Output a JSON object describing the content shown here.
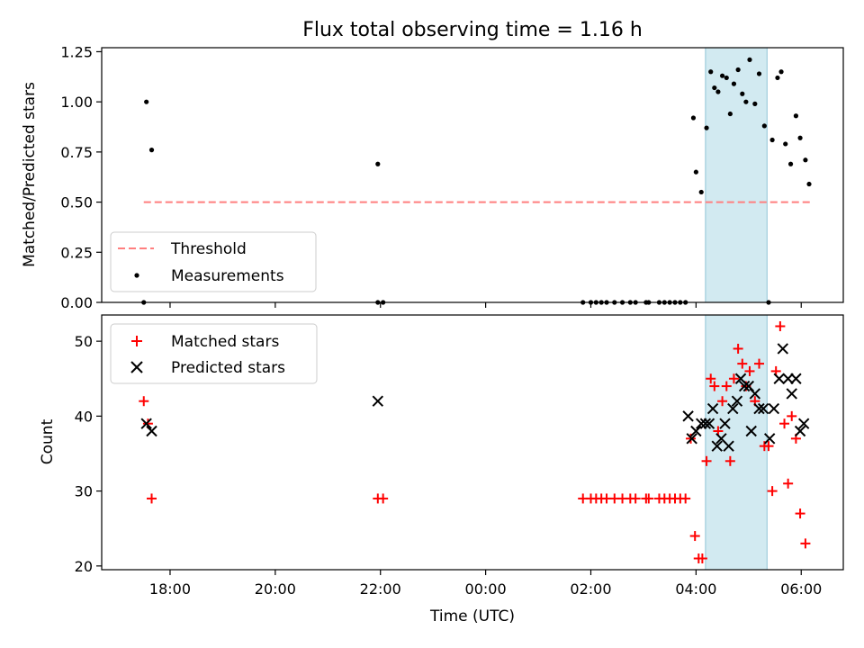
{
  "chart_data": {
    "title": "Flux total observing time = 1.16 h",
    "xlabel": "Time (UTC)",
    "x_unit": "hours since 00:00 UTC (negative = previous evening)",
    "xlim": [
      -7.3,
      6.8
    ],
    "x_ticks": [
      {
        "value": -6,
        "label": "18:00"
      },
      {
        "value": -4,
        "label": "20:00"
      },
      {
        "value": -2,
        "label": "22:00"
      },
      {
        "value": 0,
        "label": "00:00"
      },
      {
        "value": 2,
        "label": "02:00"
      },
      {
        "value": 4,
        "label": "04:00"
      },
      {
        "value": 6,
        "label": "06:00"
      }
    ],
    "highlight_span": [
      4.18,
      5.35
    ],
    "colors": {
      "threshold": "#ff7f7f",
      "measurement": "#000000",
      "matched": "#ff0000",
      "predicted": "#000000",
      "span_fill": "#add8e6",
      "span_edge": "#8fc4d6"
    },
    "top": {
      "type": "scatter",
      "ylabel": "Matched/Predicted stars",
      "ylim": [
        0,
        1.27
      ],
      "y_ticks": [
        "0.00",
        "0.25",
        "0.50",
        "0.75",
        "1.00",
        "1.25"
      ],
      "threshold": {
        "value": 0.5,
        "x_range": [
          -6.5,
          6.2
        ],
        "label": "Threshold"
      },
      "measurements_label": "Measurements",
      "measurements": [
        [
          -6.5,
          0
        ],
        [
          -6.45,
          1.0
        ],
        [
          -6.35,
          0.76
        ],
        [
          -2.05,
          0.69
        ],
        [
          -2.05,
          0
        ],
        [
          -1.95,
          0
        ],
        [
          1.85,
          0
        ],
        [
          2.0,
          0
        ],
        [
          2.1,
          0
        ],
        [
          2.2,
          0
        ],
        [
          2.3,
          0
        ],
        [
          2.45,
          0
        ],
        [
          2.6,
          0
        ],
        [
          2.75,
          0
        ],
        [
          2.85,
          0
        ],
        [
          3.05,
          0
        ],
        [
          3.1,
          0
        ],
        [
          3.3,
          0
        ],
        [
          3.4,
          0
        ],
        [
          3.5,
          0
        ],
        [
          3.6,
          0
        ],
        [
          3.7,
          0
        ],
        [
          3.8,
          0
        ],
        [
          3.95,
          0.92
        ],
        [
          4.0,
          0.65
        ],
        [
          4.1,
          0.55
        ],
        [
          4.2,
          0.87
        ],
        [
          4.28,
          1.15
        ],
        [
          4.35,
          1.07
        ],
        [
          4.42,
          1.05
        ],
        [
          4.5,
          1.13
        ],
        [
          4.58,
          1.12
        ],
        [
          4.65,
          0.94
        ],
        [
          4.72,
          1.09
        ],
        [
          4.8,
          1.16
        ],
        [
          4.88,
          1.04
        ],
        [
          4.95,
          1.0
        ],
        [
          5.02,
          1.21
        ],
        [
          5.12,
          0.99
        ],
        [
          5.2,
          1.14
        ],
        [
          5.3,
          0.88
        ],
        [
          5.38,
          0
        ],
        [
          5.45,
          0.81
        ],
        [
          5.55,
          1.12
        ],
        [
          5.62,
          1.15
        ],
        [
          5.7,
          0.79
        ],
        [
          5.8,
          0.69
        ],
        [
          5.9,
          0.93
        ],
        [
          5.98,
          0.82
        ],
        [
          6.08,
          0.71
        ],
        [
          6.15,
          0.59
        ]
      ]
    },
    "bottom": {
      "type": "scatter",
      "ylabel": "Count",
      "ylim": [
        19.5,
        53.5
      ],
      "y_ticks": [
        "20",
        "30",
        "40",
        "50"
      ],
      "matched_label": "Matched stars",
      "predicted_label": "Predicted stars",
      "matched": [
        [
          -6.5,
          42
        ],
        [
          -6.42,
          39
        ],
        [
          -6.35,
          29
        ],
        [
          -2.05,
          29
        ],
        [
          -1.95,
          29
        ],
        [
          1.85,
          29
        ],
        [
          2.0,
          29
        ],
        [
          2.1,
          29
        ],
        [
          2.2,
          29
        ],
        [
          2.3,
          29
        ],
        [
          2.45,
          29
        ],
        [
          2.6,
          29
        ],
        [
          2.75,
          29
        ],
        [
          2.85,
          29
        ],
        [
          3.05,
          29
        ],
        [
          3.1,
          29
        ],
        [
          3.3,
          29
        ],
        [
          3.4,
          29
        ],
        [
          3.5,
          29
        ],
        [
          3.6,
          29
        ],
        [
          3.7,
          29
        ],
        [
          3.8,
          29
        ],
        [
          3.9,
          37
        ],
        [
          3.98,
          24
        ],
        [
          4.05,
          21
        ],
        [
          4.12,
          21
        ],
        [
          4.2,
          34
        ],
        [
          4.28,
          45
        ],
        [
          4.35,
          44
        ],
        [
          4.42,
          38
        ],
        [
          4.5,
          42
        ],
        [
          4.58,
          44
        ],
        [
          4.65,
          34
        ],
        [
          4.72,
          45
        ],
        [
          4.8,
          49
        ],
        [
          4.88,
          47
        ],
        [
          4.95,
          44
        ],
        [
          5.02,
          46
        ],
        [
          5.12,
          42
        ],
        [
          5.2,
          47
        ],
        [
          5.3,
          36
        ],
        [
          5.38,
          36
        ],
        [
          5.45,
          30
        ],
        [
          5.52,
          46
        ],
        [
          5.6,
          52
        ],
        [
          5.68,
          39
        ],
        [
          5.75,
          31
        ],
        [
          5.82,
          40
        ],
        [
          5.9,
          37
        ],
        [
          5.98,
          27
        ],
        [
          6.08,
          23
        ]
      ],
      "predicted": [
        [
          -6.45,
          39
        ],
        [
          -6.35,
          38
        ],
        [
          -2.05,
          42
        ],
        [
          3.85,
          40
        ],
        [
          3.92,
          37
        ],
        [
          4.0,
          38
        ],
        [
          4.1,
          39
        ],
        [
          4.18,
          39
        ],
        [
          4.25,
          39
        ],
        [
          4.32,
          41
        ],
        [
          4.4,
          36
        ],
        [
          4.48,
          37
        ],
        [
          4.55,
          39
        ],
        [
          4.62,
          36
        ],
        [
          4.7,
          41
        ],
        [
          4.78,
          42
        ],
        [
          4.85,
          45
        ],
        [
          4.92,
          44
        ],
        [
          5.0,
          44
        ],
        [
          5.05,
          38
        ],
        [
          5.12,
          43
        ],
        [
          5.2,
          41
        ],
        [
          5.28,
          41
        ],
        [
          5.4,
          37
        ],
        [
          5.48,
          41
        ],
        [
          5.58,
          45
        ],
        [
          5.65,
          49
        ],
        [
          5.75,
          45
        ],
        [
          5.82,
          43
        ],
        [
          5.9,
          45
        ],
        [
          5.98,
          38
        ],
        [
          6.05,
          39
        ]
      ]
    }
  }
}
